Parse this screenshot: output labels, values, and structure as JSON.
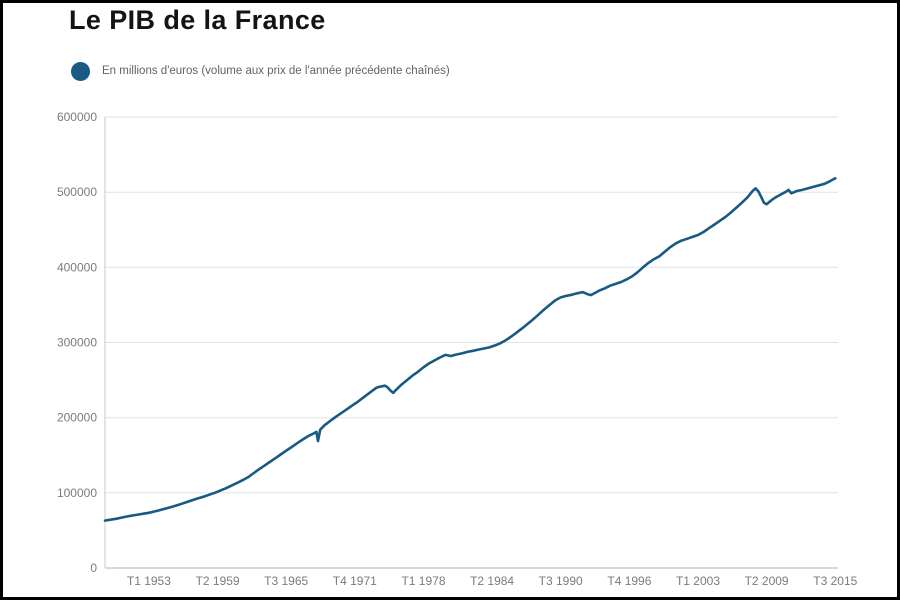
{
  "header": {
    "title": "Le PIB de la France"
  },
  "legend": {
    "label": "En millions d'euros (volume aux prix de l'année précédente chaînés)",
    "marker_color": "#185a82"
  },
  "chart_data": {
    "type": "line",
    "title": "Le PIB de la France",
    "series_name": "PIB de la France",
    "ylabel": "",
    "xlabel": "",
    "unit": "millions d'euros (volume aux prix de l'année précédente chaînés)",
    "x_unit": "trimestre",
    "line_color": "#185a82",
    "grid": true,
    "legend_position": "top-left",
    "ylim": [
      0,
      600000
    ],
    "xlim": [
      1949,
      2015.75
    ],
    "y_ticks": [
      0,
      100000,
      200000,
      300000,
      400000,
      500000,
      600000
    ],
    "x_ticks": [
      {
        "label": "T1 1953",
        "x": 1953.0
      },
      {
        "label": "T2 1959",
        "x": 1959.25
      },
      {
        "label": "T3 1965",
        "x": 1965.5
      },
      {
        "label": "T4 1971",
        "x": 1971.75
      },
      {
        "label": "T1 1978",
        "x": 1978.0
      },
      {
        "label": "T2 1984",
        "x": 1984.25
      },
      {
        "label": "T3 1990",
        "x": 1990.5
      },
      {
        "label": "T4 1996",
        "x": 1996.75
      },
      {
        "label": "T1 2003",
        "x": 2003.0
      },
      {
        "label": "T2 2009",
        "x": 2009.25
      },
      {
        "label": "T3 2015",
        "x": 2015.5
      }
    ],
    "points": [
      [
        1949,
        63000
      ],
      [
        1949.5,
        64200
      ],
      [
        1950,
        65500
      ],
      [
        1950.5,
        67000
      ],
      [
        1951,
        68500
      ],
      [
        1951.5,
        69800
      ],
      [
        1952,
        71000
      ],
      [
        1952.5,
        72200
      ],
      [
        1953,
        73500
      ],
      [
        1953.5,
        75200
      ],
      [
        1954,
        77000
      ],
      [
        1954.5,
        79000
      ],
      [
        1955,
        81000
      ],
      [
        1955.5,
        83200
      ],
      [
        1956,
        85500
      ],
      [
        1956.5,
        88000
      ],
      [
        1957,
        90500
      ],
      [
        1957.5,
        92800
      ],
      [
        1958,
        95000
      ],
      [
        1958.5,
        97500
      ],
      [
        1959,
        100000
      ],
      [
        1959.5,
        103000
      ],
      [
        1960,
        106000
      ],
      [
        1960.5,
        109500
      ],
      [
        1961,
        113000
      ],
      [
        1961.5,
        116700
      ],
      [
        1962,
        120500
      ],
      [
        1962.5,
        125700
      ],
      [
        1963,
        131000
      ],
      [
        1963.5,
        136000
      ],
      [
        1964,
        141000
      ],
      [
        1964.5,
        146000
      ],
      [
        1965,
        151000
      ],
      [
        1965.5,
        156000
      ],
      [
        1966,
        161000
      ],
      [
        1966.5,
        166000
      ],
      [
        1967,
        171000
      ],
      [
        1967.5,
        175500
      ],
      [
        1968,
        179000
      ],
      [
        1968.25,
        181000
      ],
      [
        1968.4,
        169000
      ],
      [
        1968.6,
        184000
      ],
      [
        1969,
        190000
      ],
      [
        1969.5,
        195500
      ],
      [
        1970,
        201000
      ],
      [
        1970.5,
        206000
      ],
      [
        1971,
        211000
      ],
      [
        1971.5,
        216000
      ],
      [
        1972,
        221000
      ],
      [
        1972.5,
        226500
      ],
      [
        1973,
        232000
      ],
      [
        1973.5,
        237500
      ],
      [
        1973.75,
        240000
      ],
      [
        1974,
        241000
      ],
      [
        1974.5,
        242500
      ],
      [
        1974.75,
        240000
      ],
      [
        1975,
        236000
      ],
      [
        1975.25,
        233000
      ],
      [
        1975.5,
        237000
      ],
      [
        1976,
        244000
      ],
      [
        1976.5,
        250000
      ],
      [
        1977,
        256000
      ],
      [
        1977.5,
        261000
      ],
      [
        1978,
        267000
      ],
      [
        1978.5,
        272000
      ],
      [
        1979,
        276000
      ],
      [
        1979.5,
        280000
      ],
      [
        1980,
        283500
      ],
      [
        1980.5,
        282000
      ],
      [
        1981,
        284000
      ],
      [
        1981.5,
        285500
      ],
      [
        1982,
        287500
      ],
      [
        1982.5,
        289000
      ],
      [
        1983,
        290500
      ],
      [
        1983.5,
        292000
      ],
      [
        1984,
        293500
      ],
      [
        1984.5,
        296000
      ],
      [
        1985,
        299000
      ],
      [
        1985.5,
        303000
      ],
      [
        1986,
        308000
      ],
      [
        1986.5,
        313500
      ],
      [
        1987,
        319000
      ],
      [
        1987.5,
        325000
      ],
      [
        1988,
        331000
      ],
      [
        1988.5,
        337500
      ],
      [
        1989,
        344000
      ],
      [
        1989.5,
        350000
      ],
      [
        1990,
        356000
      ],
      [
        1990.5,
        360000
      ],
      [
        1991,
        362000
      ],
      [
        1991.5,
        363500
      ],
      [
        1992,
        365500
      ],
      [
        1992.5,
        367000
      ],
      [
        1993,
        364000
      ],
      [
        1993.25,
        363000
      ],
      [
        1993.5,
        365000
      ],
      [
        1994,
        369000
      ],
      [
        1994.5,
        372000
      ],
      [
        1995,
        375500
      ],
      [
        1995.5,
        378000
      ],
      [
        1996,
        380500
      ],
      [
        1996.5,
        384000
      ],
      [
        1997,
        388000
      ],
      [
        1997.5,
        393500
      ],
      [
        1998,
        400000
      ],
      [
        1998.5,
        406000
      ],
      [
        1999,
        411000
      ],
      [
        1999.5,
        415000
      ],
      [
        2000,
        421000
      ],
      [
        2000.5,
        427000
      ],
      [
        2001,
        432000
      ],
      [
        2001.5,
        435500
      ],
      [
        2002,
        438000
      ],
      [
        2002.5,
        440500
      ],
      [
        2003,
        443000
      ],
      [
        2003.5,
        447000
      ],
      [
        2004,
        452000
      ],
      [
        2004.5,
        457000
      ],
      [
        2005,
        462000
      ],
      [
        2005.5,
        467000
      ],
      [
        2006,
        473000
      ],
      [
        2006.5,
        479500
      ],
      [
        2007,
        486000
      ],
      [
        2007.5,
        493000
      ],
      [
        2008,
        502000
      ],
      [
        2008.25,
        505000
      ],
      [
        2008.5,
        501000
      ],
      [
        2008.75,
        494000
      ],
      [
        2009,
        486000
      ],
      [
        2009.25,
        484000
      ],
      [
        2009.5,
        487000
      ],
      [
        2009.75,
        490000
      ],
      [
        2010,
        492500
      ],
      [
        2010.5,
        496500
      ],
      [
        2011,
        500500
      ],
      [
        2011.25,
        503000
      ],
      [
        2011.5,
        498500
      ],
      [
        2011.75,
        500000
      ],
      [
        2012,
        501500
      ],
      [
        2012.5,
        503000
      ],
      [
        2013,
        505000
      ],
      [
        2013.5,
        507000
      ],
      [
        2014,
        509000
      ],
      [
        2014.5,
        511000
      ],
      [
        2015,
        514500
      ],
      [
        2015.25,
        516500
      ],
      [
        2015.5,
        518500
      ]
    ]
  },
  "colors": {
    "line": "#185a82",
    "gridline": "#e2e2e2",
    "zero_axis": "#b0b0b0",
    "y_axis": "#c8c8c8",
    "tick_text": "#7b7b7b",
    "title_text": "#141414",
    "legend_text": "#636363",
    "frame_border": "#000000",
    "background": "#ffffff"
  }
}
